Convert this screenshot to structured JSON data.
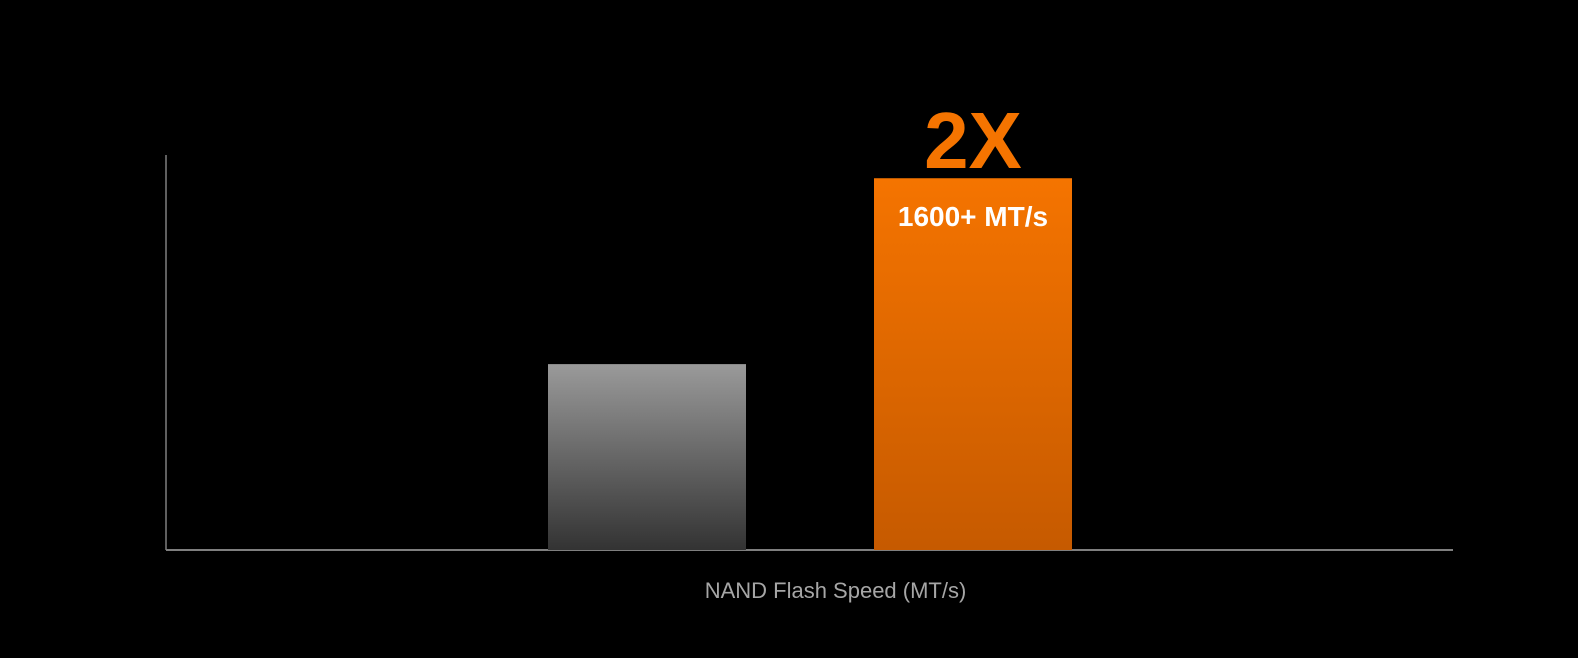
{
  "chart_data": {
    "type": "bar",
    "title": "",
    "xlabel": "NAND Flash Speed (MT/s)",
    "ylabel": "",
    "ylim": [
      0,
      1700
    ],
    "grid": false,
    "categories": [
      "",
      ""
    ],
    "values": [
      800,
      1600
    ],
    "data_labels": [
      "",
      "1600+ MT/s"
    ],
    "annotations": [
      {
        "text": "2X",
        "target_index": 1
      }
    ],
    "colors": {
      "background": "#000000",
      "axis": "#7f7f7f",
      "bar_1_top": "#9a9a9a",
      "bar_1_bottom": "#333333",
      "bar_2_top": "#f57400",
      "bar_2_bottom": "#c65a00",
      "annotation": "#f57400",
      "xlabel": "#a6a6a6"
    }
  }
}
